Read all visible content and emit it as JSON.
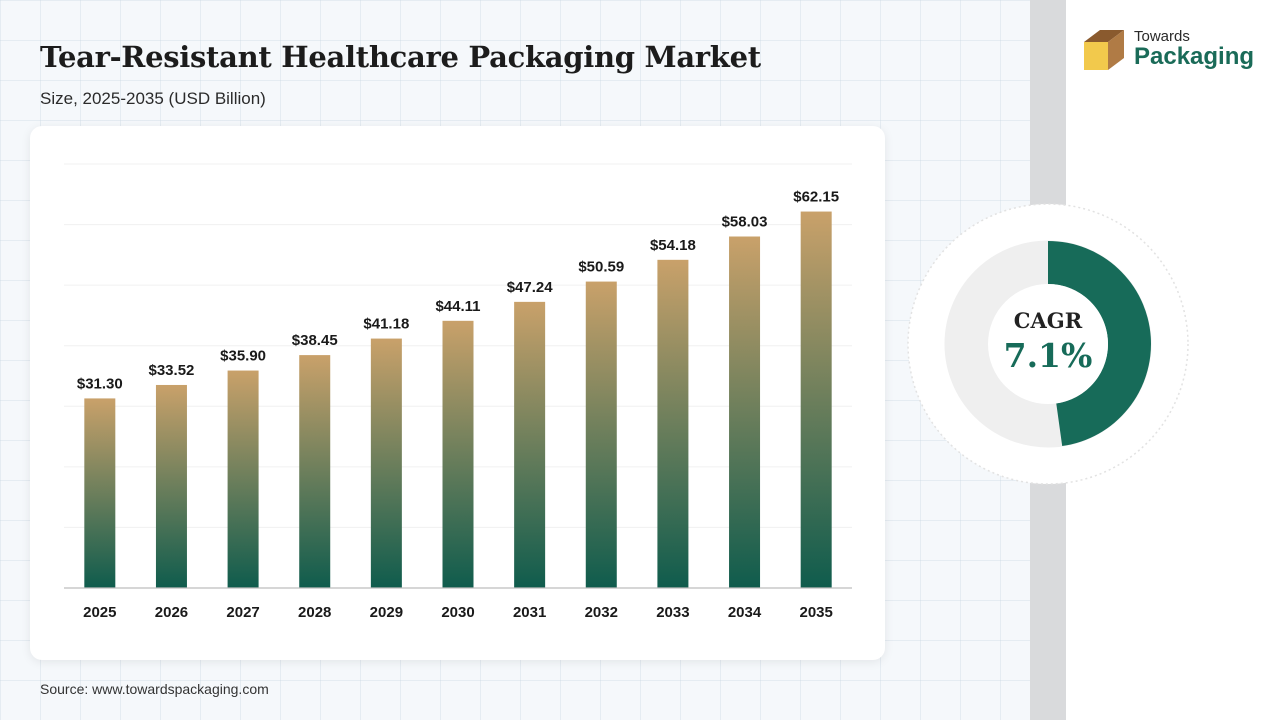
{
  "header": {
    "title": "Tear-Resistant Healthcare Packaging Market",
    "subtitle": "Size, 2025-2035 (USD Billion)"
  },
  "logo": {
    "line1": "Towards",
    "line2": "Packaging",
    "icon": "box-logo-icon"
  },
  "cagr": {
    "label": "CAGR",
    "value": "7.1%",
    "fraction": 0.478,
    "ring_color": "#176b59",
    "track_color": "#efefef"
  },
  "source": "Source: www.towardspackaging.com",
  "colors": {
    "bar_top": "#c9a16a",
    "bar_bottom": "#0f5c4d",
    "accent": "#176b59"
  },
  "chart_data": {
    "type": "bar",
    "title": "Tear-Resistant Healthcare Packaging Market",
    "subtitle": "Size, 2025-2035 (USD Billion)",
    "categories": [
      "2025",
      "2026",
      "2027",
      "2028",
      "2029",
      "2030",
      "2031",
      "2032",
      "2033",
      "2034",
      "2035"
    ],
    "values": [
      31.3,
      33.52,
      35.9,
      38.45,
      41.18,
      44.11,
      47.24,
      50.59,
      54.18,
      58.03,
      62.15
    ],
    "value_labels": [
      "$31.30",
      "$33.52",
      "$35.90",
      "$38.45",
      "$41.18",
      "$44.11",
      "$47.24",
      "$50.59",
      "$54.18",
      "$58.03",
      "$62.15"
    ],
    "ylim": [
      0,
      70
    ],
    "grid": true,
    "legend": "none"
  }
}
